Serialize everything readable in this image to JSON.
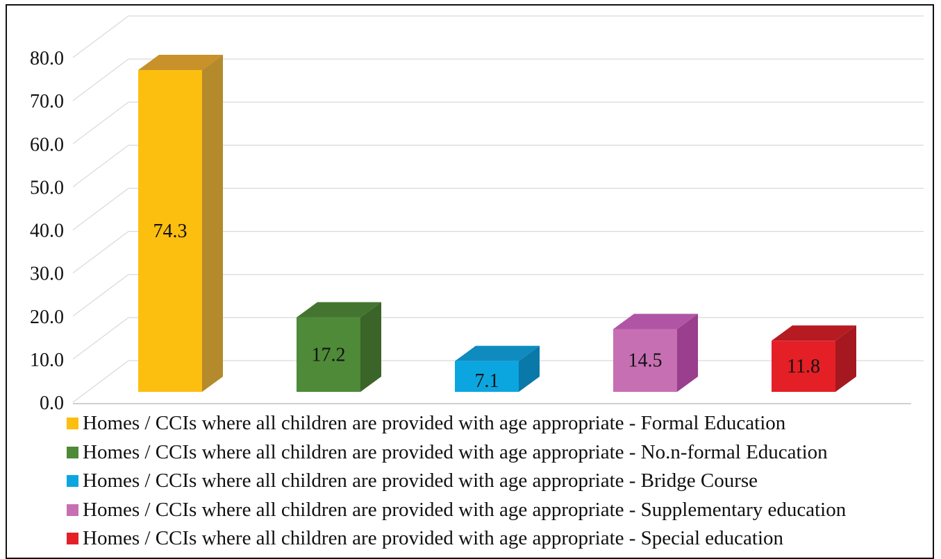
{
  "chart_data": {
    "type": "bar",
    "title": "",
    "xlabel": "",
    "ylabel": "",
    "ylim": [
      0,
      80
    ],
    "ytick_step": 10,
    "ytick_decimals": 1,
    "grid": true,
    "three_d": true,
    "legend_position": "bottom",
    "categories": [
      "Homes / CCIs where  all children are provided with age appropriate - Formal Education",
      "Homes / CCIs where  all children are provided with age appropriate - No.n-formal Education",
      "Homes / CCIs where  all children are provided with age appropriate - Bridge Course",
      "Homes / CCIs where  all children are provided with age appropriate - Supplementary education",
      "Homes / CCIs where  all children are provided with age appropriate - Special education"
    ],
    "values": [
      74.3,
      17.2,
      7.1,
      14.5,
      11.8
    ],
    "value_labels": [
      "74.3",
      "17.2",
      "7.1",
      "14.5",
      "11.8"
    ],
    "colors": [
      "#FDBF0F",
      "#4E8A38",
      "#0BA6E0",
      "#C76FB3",
      "#E41F26"
    ],
    "side_colors": [
      "#B58A2C",
      "#3A6428",
      "#0A78A8",
      "#9A3E8E",
      "#A51820"
    ],
    "top_colors": [
      "#C9912A",
      "#447530",
      "#0F8BC0",
      "#B055A5",
      "#B71B22"
    ]
  }
}
